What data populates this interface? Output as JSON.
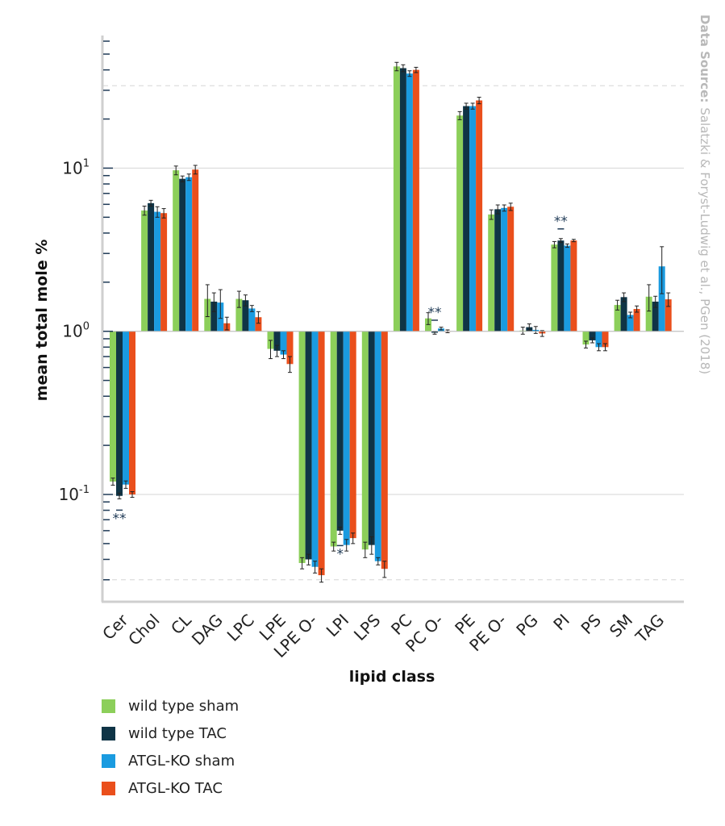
{
  "chart_data": {
    "type": "bar",
    "xlabel": "lipid class",
    "ylabel": "mean total mole %",
    "yscale": "log",
    "ylim": [
      0.022,
      65
    ],
    "y_major_ticks": [
      {
        "value": 0.1,
        "base": "10",
        "exp": "-1"
      },
      {
        "value": 1,
        "base": "10",
        "exp": "0"
      },
      {
        "value": 10,
        "base": "10",
        "exp": "1"
      }
    ],
    "baseline": 1,
    "reference_lines": [
      0.03,
      32
    ],
    "grid": true,
    "legend_position": "bottom-left",
    "source_label": "Data Source:",
    "source_text": "Salatzki & Foryst-Ludwig et al., PGen (2018)",
    "categories": [
      "Cer",
      "Chol",
      "CL",
      "DAG",
      "LPC",
      "LPE",
      "LPE O-",
      "LPI",
      "LPS",
      "PC",
      "PC O-",
      "PE",
      "PE O-",
      "PG",
      "PI",
      "PS",
      "SM",
      "TAG"
    ],
    "series": [
      {
        "name": "wild type sham",
        "color": "#8ccf5a",
        "values": [
          0.12,
          5.5,
          9.7,
          1.58,
          1.58,
          0.78,
          0.038,
          0.048,
          0.046,
          42,
          1.2,
          21,
          5.2,
          1.01,
          3.4,
          0.83,
          1.45,
          1.63
        ],
        "errors": [
          0.006,
          0.35,
          0.6,
          0.35,
          0.18,
          0.1,
          0.003,
          0.003,
          0.005,
          2.5,
          0.1,
          1.2,
          0.35,
          0.05,
          0.15,
          0.04,
          0.1,
          0.3
        ]
      },
      {
        "name": "wild type TAC",
        "color": "#0f3446",
        "values": [
          0.098,
          6.1,
          8.6,
          1.52,
          1.55,
          0.76,
          0.04,
          0.06,
          0.049,
          41,
          0.98,
          24,
          5.6,
          1.06,
          3.6,
          0.88,
          1.62,
          1.52
        ],
        "errors": [
          0.004,
          0.25,
          0.35,
          0.2,
          0.12,
          0.06,
          0.003,
          0.003,
          0.006,
          2.0,
          0.02,
          1.0,
          0.35,
          0.05,
          0.1,
          0.03,
          0.1,
          0.12
        ]
      },
      {
        "name": "ATGL-KO sham",
        "color": "#1a9be0",
        "values": [
          0.115,
          5.4,
          8.8,
          1.5,
          1.38,
          0.72,
          0.036,
          0.049,
          0.039,
          38,
          1.04,
          24,
          5.7,
          1.02,
          3.35,
          0.8,
          1.26,
          2.5
        ],
        "errors": [
          0.006,
          0.4,
          0.4,
          0.3,
          0.06,
          0.04,
          0.003,
          0.004,
          0.002,
          1.5,
          0.02,
          1.0,
          0.25,
          0.05,
          0.08,
          0.04,
          0.05,
          0.8
        ]
      },
      {
        "name": "ATGL-KO TAC",
        "color": "#ea4f1c",
        "values": [
          0.1,
          5.3,
          9.8,
          1.12,
          1.22,
          0.63,
          0.032,
          0.054,
          0.035,
          40,
          1.0,
          26,
          5.8,
          0.97,
          3.6,
          0.8,
          1.37,
          1.57
        ],
        "errors": [
          0.004,
          0.35,
          0.6,
          0.1,
          0.1,
          0.07,
          0.003,
          0.004,
          0.004,
          1.5,
          0.02,
          1.2,
          0.3,
          0.04,
          0.06,
          0.04,
          0.06,
          0.15
        ]
      }
    ],
    "significance": [
      {
        "category": "Cer",
        "series": 1,
        "label": "**",
        "position": "below"
      },
      {
        "category": "LPI",
        "series": 1,
        "label": "*",
        "position": "below"
      },
      {
        "category": "PC O-",
        "series": 1,
        "label": "**",
        "position": "above"
      },
      {
        "category": "PI",
        "series": 1,
        "label": "**",
        "position": "above"
      }
    ]
  }
}
